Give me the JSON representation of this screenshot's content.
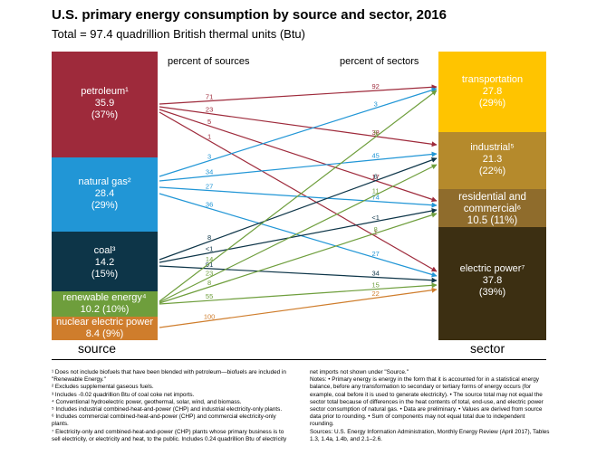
{
  "title": "U.S. primary energy consumption by source and sector, 2016",
  "subtitle": "Total = 97.4 quadrillion British thermal units (Btu)",
  "headers": {
    "sources": "percent of sources",
    "sectors": "percent of sectors"
  },
  "axis": {
    "source": "source",
    "sector": "sector"
  },
  "colors": {
    "petroleum": "#9e2a3b",
    "natural_gas": "#2196d6",
    "coal": "#0d3548",
    "renewable": "#6e9e3c",
    "nuclear": "#cf7d2c",
    "transportation": "#ffc400",
    "industrial": "#b58a2c",
    "residential": "#8f6c2c",
    "electric": "#3c2f12"
  },
  "sources": {
    "petroleum": {
      "name": "petroleum¹",
      "value": "35.9",
      "pct": "(37%)"
    },
    "natural_gas": {
      "name": "natural gas²",
      "value": "28.4",
      "pct": "(29%)"
    },
    "coal": {
      "name": "coal³",
      "value": "14.2",
      "pct": "(15%)"
    },
    "renewable": {
      "name": "renewable energy⁴",
      "value_pct": "10.2 (10%)"
    },
    "nuclear": {
      "name": "nuclear electric power",
      "value_pct": "8.4 (9%)"
    }
  },
  "sectors": {
    "transportation": {
      "name": "transportation",
      "value": "27.8",
      "pct": "(29%)"
    },
    "industrial": {
      "name": "industrial⁵",
      "value": "21.3",
      "pct": "(22%)"
    },
    "residential": {
      "name1": "residential and",
      "name2": "commercial⁶",
      "value_pct": "10.5 (11%)"
    },
    "electric": {
      "name": "electric power⁷",
      "value": "37.8",
      "pct": "(39%)"
    }
  },
  "flows": [
    {
      "from": "petroleum",
      "to": "transportation",
      "source_pct": "71",
      "sector_pct": "92"
    },
    {
      "from": "petroleum",
      "to": "industrial",
      "source_pct": "23",
      "sector_pct": "38"
    },
    {
      "from": "petroleum",
      "to": "residential",
      "source_pct": "5",
      "sector_pct": "17"
    },
    {
      "from": "petroleum",
      "to": "electric",
      "source_pct": "1",
      "sector_pct": "1"
    },
    {
      "from": "natural_gas",
      "to": "transportation",
      "source_pct": "3",
      "sector_pct": "3"
    },
    {
      "from": "natural_gas",
      "to": "industrial",
      "source_pct": "34",
      "sector_pct": "45"
    },
    {
      "from": "natural_gas",
      "to": "residential",
      "source_pct": "27",
      "sector_pct": "74"
    },
    {
      "from": "natural_gas",
      "to": "electric",
      "source_pct": "36",
      "sector_pct": "27"
    },
    {
      "from": "coal",
      "to": "industrial",
      "source_pct": "8",
      "sector_pct": "6"
    },
    {
      "from": "coal",
      "to": "residential",
      "source_pct": "<1",
      "sector_pct": "<1"
    },
    {
      "from": "coal",
      "to": "electric",
      "source_pct": "91",
      "sector_pct": "34"
    },
    {
      "from": "renewable",
      "to": "transportation",
      "source_pct": "14",
      "sector_pct": "5"
    },
    {
      "from": "renewable",
      "to": "industrial",
      "source_pct": "23",
      "sector_pct": "11"
    },
    {
      "from": "renewable",
      "to": "residential",
      "source_pct": "8",
      "sector_pct": "8"
    },
    {
      "from": "renewable",
      "to": "electric",
      "source_pct": "55",
      "sector_pct": "15"
    },
    {
      "from": "nuclear",
      "to": "electric",
      "source_pct": "100",
      "sector_pct": "22"
    }
  ],
  "footnotes_left": [
    "¹ Does not include biofuels that have been blended with petroleum—biofuels are included in",
    "\"Renewable Energy.\"",
    "² Excludes supplemental gaseous fuels.",
    "³ Includes -0.02 quadrillion Btu of coal coke net imports.",
    "⁴ Conventional hydroelectric power, geothermal, solar, wind, and biomass.",
    "⁵ Includes industrial combined-heat-and-power (CHP) and industrial electricity-only plants.",
    "⁶ Includes commercial combined-heat-and-power (CHP) and commercial electricity-only",
    "plants.",
    "⁷ Electricity-only and combined-heat-and-power (CHP) plants whose primary business is to",
    "sell electricity, or electricity and heat, to the public. Includes 0.24 quadrillion Btu of electricity"
  ],
  "footnotes_right": [
    "net imports not shown under \"Source.\"",
    "Notes: • Primary energy is energy in the form that it is accounted for in a statistical energy",
    "balance, before any transformation to secondary or tertiary forms of energy occurs (for",
    "example, coal before it is used to generate electricity). • The source total may not equal the",
    "sector total because of differences in the heat contents of total, end-use, and electric power",
    "sector consumption of natural gas. • Data are preliminary. • Values are derived from source",
    "data prior to rounding. • Sum of components may not equal total due to independent",
    "rounding.",
    "Sources: U.S. Energy Information Administration, Monthly Energy Review (April 2017), Tables",
    "1.3, 1.4a, 1.4b, and 2.1–2.6."
  ]
}
